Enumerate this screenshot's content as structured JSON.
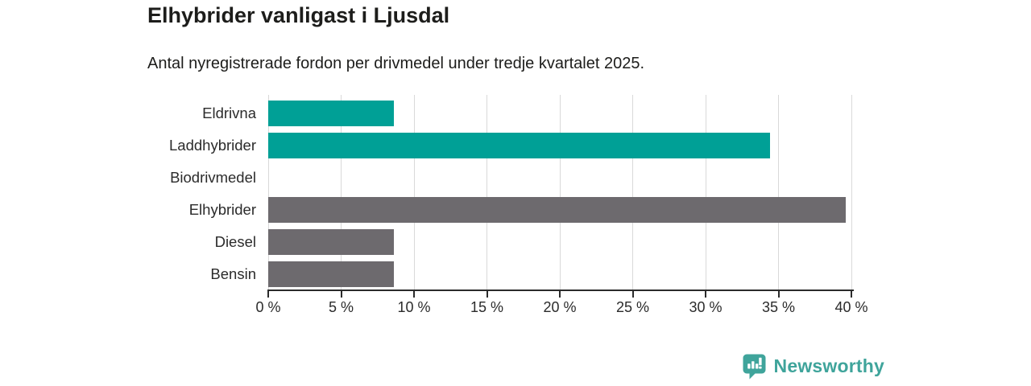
{
  "chart_data": {
    "type": "bar",
    "orientation": "horizontal",
    "title": "Elhybrider vanligast i Ljusdal",
    "subtitle": "Antal nyregistrerade fordon per drivmedel under tredje kvartalet 2025.",
    "categories": [
      "Eldrivna",
      "Laddhybrider",
      "Biodrivmedel",
      "Elhybrider",
      "Diesel",
      "Bensin"
    ],
    "values": [
      8.6,
      34.4,
      0,
      39.6,
      8.6,
      8.6
    ],
    "value_unit": "%",
    "xlim": [
      0,
      40
    ],
    "xticks": [
      0,
      5,
      10,
      15,
      20,
      25,
      30,
      35,
      40
    ],
    "xtick_labels": [
      "0 %",
      "5 %",
      "10 %",
      "15 %",
      "20 %",
      "25 %",
      "30 %",
      "35 %",
      "40 %"
    ],
    "bar_colors": [
      "#00a096",
      "#00a096",
      "#6d6a6e",
      "#6d6a6e",
      "#6d6a6e",
      "#6d6a6e"
    ],
    "grid": "vertical",
    "legend": "none",
    "grid_color": "#d9d9d9",
    "axis_color": "#2b2b2b"
  },
  "branding": {
    "logo_text": "Newsworthy",
    "brand_color": "#3fa49b"
  }
}
